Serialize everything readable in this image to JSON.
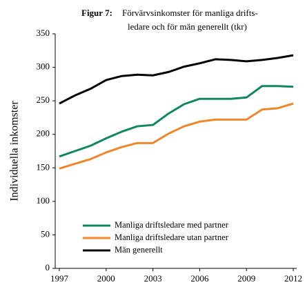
{
  "chart_data": {
    "type": "line",
    "title_label": "Figur 7:",
    "title_lines": [
      "Förvärvsinkomster för manliga drifts-",
      "ledare och för män generellt (tkr)"
    ],
    "ylabel": "Individuella inkomster",
    "x": [
      1997,
      1998,
      1999,
      2000,
      2001,
      2002,
      2003,
      2004,
      2005,
      2006,
      2007,
      2008,
      2009,
      2010,
      2011,
      2012
    ],
    "xlim": [
      1997,
      2012
    ],
    "xticks": [
      1997,
      2000,
      2003,
      2006,
      2009,
      2012
    ],
    "ylim": [
      0,
      350
    ],
    "yticks": [
      0,
      50,
      100,
      150,
      200,
      250,
      300,
      350
    ],
    "grid": false,
    "legend": "lower left",
    "series": [
      {
        "name": "Manliga driftsledare med partner",
        "color": "#11875d",
        "values": [
          167,
          175,
          183,
          194,
          204,
          212,
          214,
          231,
          245,
          253,
          253,
          253,
          255,
          272,
          272,
          271
        ]
      },
      {
        "name": "Manliga driftsledare utan partner",
        "color": "#f0862a",
        "values": [
          149,
          156,
          163,
          173,
          181,
          187,
          187,
          201,
          212,
          219,
          222,
          222,
          222,
          237,
          239,
          246
        ]
      },
      {
        "name": "Män generellt",
        "color": "#000000",
        "values": [
          246,
          258,
          268,
          281,
          287,
          289,
          288,
          293,
          301,
          306,
          312,
          311,
          309,
          311,
          314,
          318
        ]
      }
    ]
  }
}
